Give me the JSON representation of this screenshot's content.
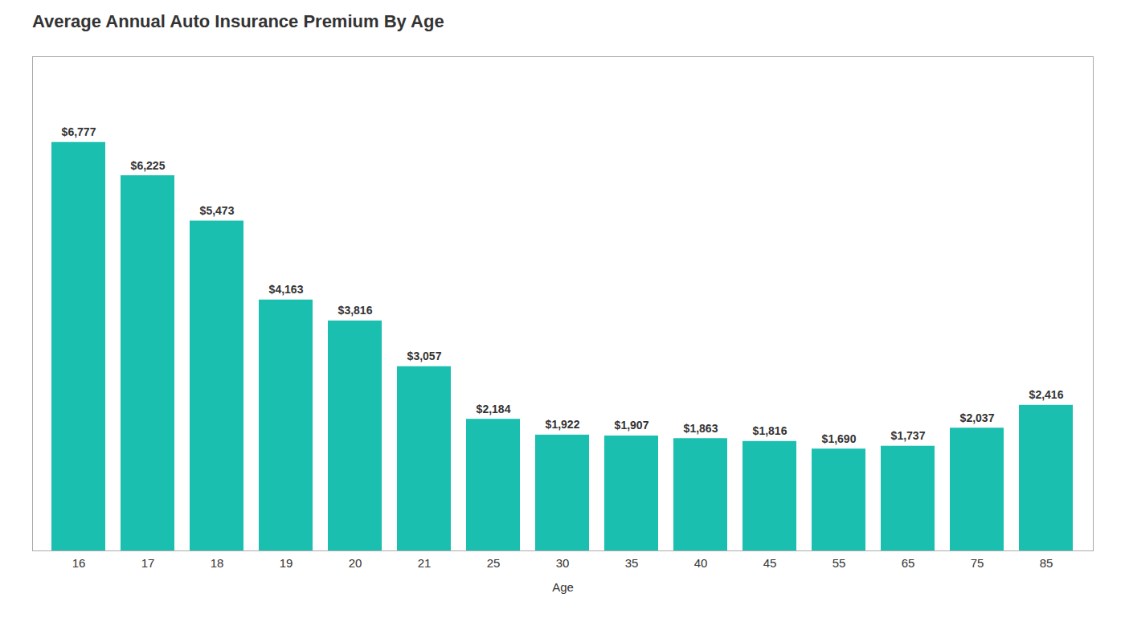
{
  "chart_data": {
    "type": "bar",
    "title": "Average Annual Auto Insurance Premium By Age",
    "xlabel": "Age",
    "categories": [
      "16",
      "17",
      "18",
      "19",
      "20",
      "21",
      "25",
      "30",
      "35",
      "40",
      "45",
      "55",
      "65",
      "75",
      "85"
    ],
    "values": [
      6777,
      6225,
      5473,
      4163,
      3816,
      3057,
      2184,
      1922,
      1907,
      1863,
      1816,
      1690,
      1737,
      2037,
      2416
    ],
    "value_labels": [
      "$6,777",
      "$6,225",
      "$5,473",
      "$4,163",
      "$3,816",
      "$3,057",
      "$2,184",
      "$1,922",
      "$1,907",
      "$1,863",
      "$1,816",
      "$1,690",
      "$1,737",
      "$2,037",
      "$2,416"
    ],
    "data_labels": true,
    "color": "#1ABFB0",
    "ylim": [
      0,
      8200
    ],
    "grid": false,
    "tick_labels": "x"
  }
}
